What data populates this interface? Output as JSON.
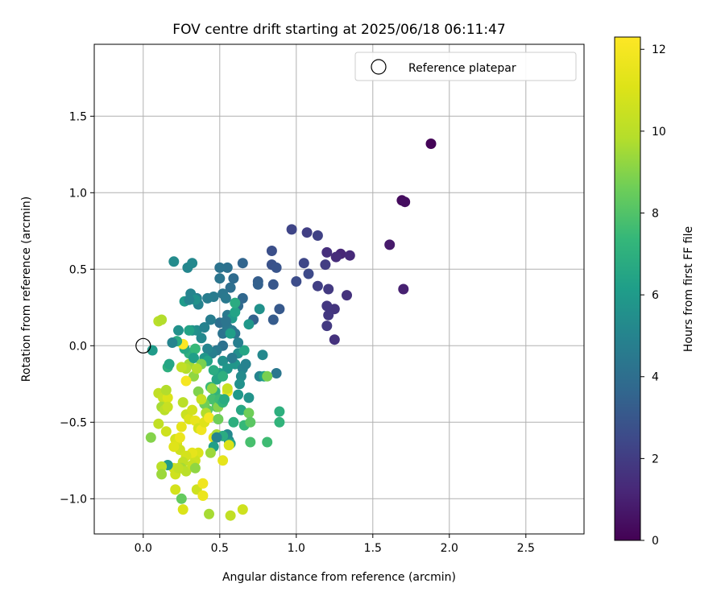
{
  "chart_data": {
    "type": "scatter",
    "title": "FOV centre drift starting at 2025/06/18 06:11:47",
    "xlabel": "Angular distance from reference (arcmin)",
    "ylabel": "Rotation from reference (arcmin)",
    "xlim": [
      -0.32,
      2.88
    ],
    "ylim": [
      -1.23,
      1.97
    ],
    "xticks": [
      0.0,
      0.5,
      1.0,
      1.5,
      2.0,
      2.5
    ],
    "xtick_labels": [
      "0.0",
      "0.5",
      "1.0",
      "1.5",
      "2.0",
      "2.5"
    ],
    "yticks": [
      -1.0,
      -0.5,
      0.0,
      0.5,
      1.0,
      1.5
    ],
    "ytick_labels": [
      "−1.0",
      "−0.5",
      "0.0",
      "0.5",
      "1.0",
      "1.5"
    ],
    "grid": true,
    "legend": {
      "position": "top-right",
      "entries": [
        {
          "label": "Reference platepar",
          "marker": "open-circle"
        }
      ]
    },
    "reference_point": {
      "x": 0.0,
      "y": 0.0
    },
    "colorbar": {
      "label": "Hours from first FF file",
      "colormap": "viridis",
      "range": [
        0,
        12.3
      ],
      "ticks": [
        0,
        2,
        4,
        6,
        8,
        10,
        12
      ],
      "tick_labels": [
        "0",
        "2",
        "4",
        "6",
        "8",
        "10",
        "12"
      ]
    },
    "points": [
      {
        "x": 1.88,
        "y": 1.32,
        "h": 0.1
      },
      {
        "x": 1.69,
        "y": 0.95,
        "h": 0.3
      },
      {
        "x": 1.71,
        "y": 0.94,
        "h": 0.4
      },
      {
        "x": 1.61,
        "y": 0.66,
        "h": 0.8
      },
      {
        "x": 1.7,
        "y": 0.37,
        "h": 1.0
      },
      {
        "x": 1.29,
        "y": 0.6,
        "h": 1.2
      },
      {
        "x": 1.35,
        "y": 0.59,
        "h": 1.3
      },
      {
        "x": 1.26,
        "y": 0.58,
        "h": 1.4
      },
      {
        "x": 1.2,
        "y": 0.61,
        "h": 1.5
      },
      {
        "x": 1.33,
        "y": 0.33,
        "h": 1.6
      },
      {
        "x": 1.25,
        "y": 0.24,
        "h": 1.7
      },
      {
        "x": 1.21,
        "y": 0.2,
        "h": 1.8
      },
      {
        "x": 1.2,
        "y": 0.13,
        "h": 1.9
      },
      {
        "x": 1.25,
        "y": 0.04,
        "h": 1.6
      },
      {
        "x": 1.2,
        "y": 0.26,
        "h": 1.8
      },
      {
        "x": 1.21,
        "y": 0.37,
        "h": 1.9
      },
      {
        "x": 1.19,
        "y": 0.53,
        "h": 2.0
      },
      {
        "x": 1.14,
        "y": 0.39,
        "h": 2.1
      },
      {
        "x": 1.07,
        "y": 0.74,
        "h": 2.1
      },
      {
        "x": 1.14,
        "y": 0.72,
        "h": 2.2
      },
      {
        "x": 0.97,
        "y": 0.76,
        "h": 2.3
      },
      {
        "x": 1.05,
        "y": 0.54,
        "h": 2.4
      },
      {
        "x": 1.08,
        "y": 0.47,
        "h": 2.5
      },
      {
        "x": 1.0,
        "y": 0.42,
        "h": 2.6
      },
      {
        "x": 0.84,
        "y": 0.62,
        "h": 2.7
      },
      {
        "x": 0.84,
        "y": 0.53,
        "h": 2.8
      },
      {
        "x": 0.87,
        "y": 0.51,
        "h": 2.9
      },
      {
        "x": 0.85,
        "y": 0.4,
        "h": 3.0
      },
      {
        "x": 0.89,
        "y": 0.24,
        "h": 3.1
      },
      {
        "x": 0.85,
        "y": 0.17,
        "h": 3.2
      },
      {
        "x": 0.75,
        "y": 0.42,
        "h": 3.3
      },
      {
        "x": 0.75,
        "y": 0.4,
        "h": 3.4
      },
      {
        "x": 0.72,
        "y": 0.17,
        "h": 3.5
      },
      {
        "x": 0.65,
        "y": 0.54,
        "h": 3.6
      },
      {
        "x": 0.65,
        "y": 0.31,
        "h": 3.7
      },
      {
        "x": 0.62,
        "y": 0.26,
        "h": 3.8
      },
      {
        "x": 0.59,
        "y": 0.44,
        "h": 3.9
      },
      {
        "x": 0.57,
        "y": 0.38,
        "h": 4.0
      },
      {
        "x": 0.55,
        "y": 0.51,
        "h": 4.1
      },
      {
        "x": 0.5,
        "y": 0.51,
        "h": 4.2
      },
      {
        "x": 0.5,
        "y": 0.44,
        "h": 4.3
      },
      {
        "x": 0.52,
        "y": 0.34,
        "h": 4.4
      },
      {
        "x": 0.54,
        "y": 0.31,
        "h": 4.5
      },
      {
        "x": 0.46,
        "y": 0.32,
        "h": 4.6
      },
      {
        "x": 0.42,
        "y": 0.31,
        "h": 4.7
      },
      {
        "x": 0.35,
        "y": 0.31,
        "h": 4.8
      },
      {
        "x": 0.36,
        "y": 0.27,
        "h": 4.9
      },
      {
        "x": 0.31,
        "y": 0.34,
        "h": 5.0
      },
      {
        "x": 0.29,
        "y": 0.51,
        "h": 5.1
      },
      {
        "x": 0.32,
        "y": 0.54,
        "h": 5.2
      },
      {
        "x": 0.2,
        "y": 0.55,
        "h": 5.3
      },
      {
        "x": 0.5,
        "y": 0.15,
        "h": 4.0
      },
      {
        "x": 0.52,
        "y": 0.08,
        "h": 4.2
      },
      {
        "x": 0.55,
        "y": 0.12,
        "h": 4.4
      },
      {
        "x": 0.58,
        "y": 0.1,
        "h": 4.6
      },
      {
        "x": 0.6,
        "y": 0.08,
        "h": 4.3
      },
      {
        "x": 0.52,
        "y": 0.0,
        "h": 4.1
      },
      {
        "x": 0.48,
        "y": -0.03,
        "h": 4.5
      },
      {
        "x": 0.45,
        "y": -0.05,
        "h": 4.8
      },
      {
        "x": 0.42,
        "y": -0.02,
        "h": 5.0
      },
      {
        "x": 0.38,
        "y": 0.05,
        "h": 5.2
      },
      {
        "x": 0.35,
        "y": 0.1,
        "h": 5.4
      },
      {
        "x": 0.32,
        "y": 0.1,
        "h": 5.6
      },
      {
        "x": 0.4,
        "y": 0.12,
        "h": 4.9
      },
      {
        "x": 0.44,
        "y": 0.17,
        "h": 4.7
      },
      {
        "x": 0.55,
        "y": 0.2,
        "h": 4.5
      },
      {
        "x": 0.58,
        "y": 0.18,
        "h": 6.0
      },
      {
        "x": 0.6,
        "y": 0.22,
        "h": 6.4
      },
      {
        "x": 0.6,
        "y": 0.28,
        "h": 6.8
      },
      {
        "x": 0.62,
        "y": -0.05,
        "h": 5.5
      },
      {
        "x": 0.66,
        "y": -0.03,
        "h": 6.5
      },
      {
        "x": 0.6,
        "y": -0.12,
        "h": 5.8
      },
      {
        "x": 0.65,
        "y": -0.15,
        "h": 5.0
      },
      {
        "x": 0.67,
        "y": -0.12,
        "h": 4.9
      },
      {
        "x": 0.64,
        "y": -0.2,
        "h": 5.3
      },
      {
        "x": 0.63,
        "y": -0.25,
        "h": 5.6
      },
      {
        "x": 0.62,
        "y": -0.32,
        "h": 5.9
      },
      {
        "x": 0.69,
        "y": -0.34,
        "h": 5.7
      },
      {
        "x": 0.78,
        "y": -0.06,
        "h": 5.2
      },
      {
        "x": 0.76,
        "y": -0.2,
        "h": 5.0
      },
      {
        "x": 0.87,
        "y": -0.18,
        "h": 4.4
      },
      {
        "x": 0.79,
        "y": -0.2,
        "h": 6.2
      },
      {
        "x": 0.81,
        "y": -0.2,
        "h": 8.8
      },
      {
        "x": 0.76,
        "y": 0.24,
        "h": 5.6
      },
      {
        "x": 0.69,
        "y": 0.14,
        "h": 5.9
      },
      {
        "x": 0.52,
        "y": -0.1,
        "h": 5.6
      },
      {
        "x": 0.55,
        "y": -0.15,
        "h": 5.8
      },
      {
        "x": 0.5,
        "y": -0.18,
        "h": 6.2
      },
      {
        "x": 0.48,
        "y": -0.22,
        "h": 6.5
      },
      {
        "x": 0.46,
        "y": -0.16,
        "h": 6.8
      },
      {
        "x": 0.52,
        "y": -0.2,
        "h": 7.0
      },
      {
        "x": 0.47,
        "y": -0.3,
        "h": 7.2
      },
      {
        "x": 0.44,
        "y": -0.27,
        "h": 7.5
      },
      {
        "x": 0.45,
        "y": -0.35,
        "h": 7.8
      },
      {
        "x": 0.48,
        "y": -0.4,
        "h": 8.0
      },
      {
        "x": 0.42,
        "y": -0.42,
        "h": 8.3
      },
      {
        "x": 0.4,
        "y": -0.38,
        "h": 8.6
      },
      {
        "x": 0.36,
        "y": -0.3,
        "h": 8.9
      },
      {
        "x": 0.33,
        "y": -0.2,
        "h": 9.2
      },
      {
        "x": 0.3,
        "y": -0.12,
        "h": 9.5
      },
      {
        "x": 0.28,
        "y": -0.15,
        "h": 9.8
      },
      {
        "x": 0.25,
        "y": -0.14,
        "h": 10.2
      },
      {
        "x": 0.3,
        "y": -0.05,
        "h": 7.0
      },
      {
        "x": 0.27,
        "y": -0.02,
        "h": 6.6
      },
      {
        "x": 0.34,
        "y": -0.02,
        "h": 7.4
      },
      {
        "x": 0.33,
        "y": -0.08,
        "h": 6.2
      },
      {
        "x": 0.4,
        "y": -0.08,
        "h": 5.8
      },
      {
        "x": 0.42,
        "y": -0.1,
        "h": 6.4
      },
      {
        "x": 0.27,
        "y": 0.29,
        "h": 6.0
      },
      {
        "x": 0.34,
        "y": 0.3,
        "h": 5.6
      },
      {
        "x": 0.3,
        "y": 0.3,
        "h": 5.0
      },
      {
        "x": 0.26,
        "y": 0.01,
        "h": 12.2
      },
      {
        "x": 0.28,
        "y": -0.23,
        "h": 12.0
      },
      {
        "x": 0.1,
        "y": 0.16,
        "h": 10.0
      },
      {
        "x": 0.12,
        "y": 0.17,
        "h": 9.8
      },
      {
        "x": 0.06,
        "y": -0.03,
        "h": 6.0
      },
      {
        "x": 0.16,
        "y": -0.14,
        "h": 7.0
      },
      {
        "x": 0.17,
        "y": -0.12,
        "h": 6.5
      },
      {
        "x": 0.1,
        "y": -0.31,
        "h": 10.2
      },
      {
        "x": 0.13,
        "y": -0.34,
        "h": 10.4
      },
      {
        "x": 0.16,
        "y": -0.34,
        "h": 11.0
      },
      {
        "x": 0.15,
        "y": -0.29,
        "h": 9.8
      },
      {
        "x": 0.12,
        "y": -0.4,
        "h": 9.6
      },
      {
        "x": 0.14,
        "y": -0.42,
        "h": 10.0
      },
      {
        "x": 0.16,
        "y": -0.4,
        "h": 10.4
      },
      {
        "x": 0.1,
        "y": -0.51,
        "h": 10.2
      },
      {
        "x": 0.15,
        "y": -0.56,
        "h": 10.6
      },
      {
        "x": 0.05,
        "y": -0.6,
        "h": 9.0
      },
      {
        "x": 0.21,
        "y": -0.61,
        "h": 10.8
      },
      {
        "x": 0.22,
        "y": -0.64,
        "h": 11.0
      },
      {
        "x": 0.24,
        "y": -0.68,
        "h": 10.6
      },
      {
        "x": 0.2,
        "y": -0.66,
        "h": 11.2
      },
      {
        "x": 0.25,
        "y": -0.53,
        "h": 11.4
      },
      {
        "x": 0.24,
        "y": -0.6,
        "h": 11.6
      },
      {
        "x": 0.26,
        "y": -0.37,
        "h": 10.0
      },
      {
        "x": 0.28,
        "y": -0.45,
        "h": 10.5
      },
      {
        "x": 0.3,
        "y": -0.48,
        "h": 11.0
      },
      {
        "x": 0.32,
        "y": -0.42,
        "h": 10.7
      },
      {
        "x": 0.34,
        "y": -0.49,
        "h": 11.5
      },
      {
        "x": 0.36,
        "y": -0.54,
        "h": 10.8
      },
      {
        "x": 0.38,
        "y": -0.55,
        "h": 11.8
      },
      {
        "x": 0.4,
        "y": -0.5,
        "h": 11.2
      },
      {
        "x": 0.38,
        "y": -0.35,
        "h": 10.4
      },
      {
        "x": 0.41,
        "y": -0.44,
        "h": 9.8
      },
      {
        "x": 0.43,
        "y": -0.47,
        "h": 12.0
      },
      {
        "x": 0.46,
        "y": -0.6,
        "h": 11.4
      },
      {
        "x": 0.48,
        "y": -0.58,
        "h": 9.6
      },
      {
        "x": 0.49,
        "y": -0.48,
        "h": 8.6
      },
      {
        "x": 0.45,
        "y": -0.28,
        "h": 9.2
      },
      {
        "x": 0.49,
        "y": -0.4,
        "h": 9.0
      },
      {
        "x": 0.5,
        "y": -0.35,
        "h": 7.6
      },
      {
        "x": 0.52,
        "y": -0.37,
        "h": 7.2
      },
      {
        "x": 0.55,
        "y": -0.3,
        "h": 11.9
      },
      {
        "x": 0.55,
        "y": -0.28,
        "h": 10.4
      },
      {
        "x": 0.53,
        "y": -0.35,
        "h": 6.8
      },
      {
        "x": 0.59,
        "y": -0.5,
        "h": 7.0
      },
      {
        "x": 0.64,
        "y": -0.42,
        "h": 6.6
      },
      {
        "x": 0.66,
        "y": -0.52,
        "h": 7.4
      },
      {
        "x": 0.69,
        "y": -0.44,
        "h": 8.6
      },
      {
        "x": 0.7,
        "y": -0.5,
        "h": 8.2
      },
      {
        "x": 0.7,
        "y": -0.63,
        "h": 7.8
      },
      {
        "x": 0.81,
        "y": -0.63,
        "h": 7.6
      },
      {
        "x": 0.89,
        "y": -0.43,
        "h": 7.0
      },
      {
        "x": 0.89,
        "y": -0.5,
        "h": 7.2
      },
      {
        "x": 0.55,
        "y": -0.58,
        "h": 5.2
      },
      {
        "x": 0.56,
        "y": -0.62,
        "h": 5.4
      },
      {
        "x": 0.57,
        "y": -0.64,
        "h": 6.4
      },
      {
        "x": 0.52,
        "y": -0.59,
        "h": 6.8
      },
      {
        "x": 0.48,
        "y": -0.6,
        "h": 5.0
      },
      {
        "x": 0.46,
        "y": -0.66,
        "h": 6.2
      },
      {
        "x": 0.44,
        "y": -0.7,
        "h": 9.4
      },
      {
        "x": 0.36,
        "y": -0.7,
        "h": 11.0
      },
      {
        "x": 0.34,
        "y": -0.75,
        "h": 10.6
      },
      {
        "x": 0.32,
        "y": -0.7,
        "h": 11.4
      },
      {
        "x": 0.28,
        "y": -0.72,
        "h": 10.8
      },
      {
        "x": 0.26,
        "y": -0.76,
        "h": 10.2
      },
      {
        "x": 0.25,
        "y": -0.8,
        "h": 9.6
      },
      {
        "x": 0.28,
        "y": -0.82,
        "h": 10.0
      },
      {
        "x": 0.32,
        "y": -0.78,
        "h": 10.4
      },
      {
        "x": 0.34,
        "y": -0.8,
        "h": 9.2
      },
      {
        "x": 0.2,
        "y": -0.8,
        "h": 10.8
      },
      {
        "x": 0.16,
        "y": -0.78,
        "h": 6.0
      },
      {
        "x": 0.12,
        "y": -0.79,
        "h": 10.0
      },
      {
        "x": 0.12,
        "y": -0.84,
        "h": 9.4
      },
      {
        "x": 0.21,
        "y": -0.84,
        "h": 10.6
      },
      {
        "x": 0.23,
        "y": -0.8,
        "h": 10.2
      },
      {
        "x": 0.21,
        "y": -0.94,
        "h": 10.8
      },
      {
        "x": 0.35,
        "y": -0.94,
        "h": 10.6
      },
      {
        "x": 0.39,
        "y": -0.9,
        "h": 11.8
      },
      {
        "x": 0.39,
        "y": -0.98,
        "h": 11.6
      },
      {
        "x": 0.25,
        "y": -1.0,
        "h": 8.4
      },
      {
        "x": 0.26,
        "y": -1.07,
        "h": 11.0
      },
      {
        "x": 0.43,
        "y": -1.1,
        "h": 9.6
      },
      {
        "x": 0.57,
        "y": -1.11,
        "h": 10.2
      },
      {
        "x": 0.65,
        "y": -1.07,
        "h": 10.6
      },
      {
        "x": 0.52,
        "y": -0.75,
        "h": 11.4
      },
      {
        "x": 0.56,
        "y": -0.65,
        "h": 11.0
      },
      {
        "x": 0.3,
        "y": 0.1,
        "h": 6.4
      },
      {
        "x": 0.23,
        "y": 0.1,
        "h": 5.6
      },
      {
        "x": 0.22,
        "y": 0.03,
        "h": 6.8
      },
      {
        "x": 0.19,
        "y": 0.02,
        "h": 5.0
      },
      {
        "x": 0.38,
        "y": -0.12,
        "h": 8.8
      },
      {
        "x": 0.35,
        "y": -0.15,
        "h": 9.9
      },
      {
        "x": 0.58,
        "y": -0.08,
        "h": 4.6
      },
      {
        "x": 0.57,
        "y": 0.08,
        "h": 6.2
      },
      {
        "x": 0.54,
        "y": 0.16,
        "h": 4.3
      },
      {
        "x": 0.62,
        "y": 0.02,
        "h": 4.8
      }
    ]
  }
}
